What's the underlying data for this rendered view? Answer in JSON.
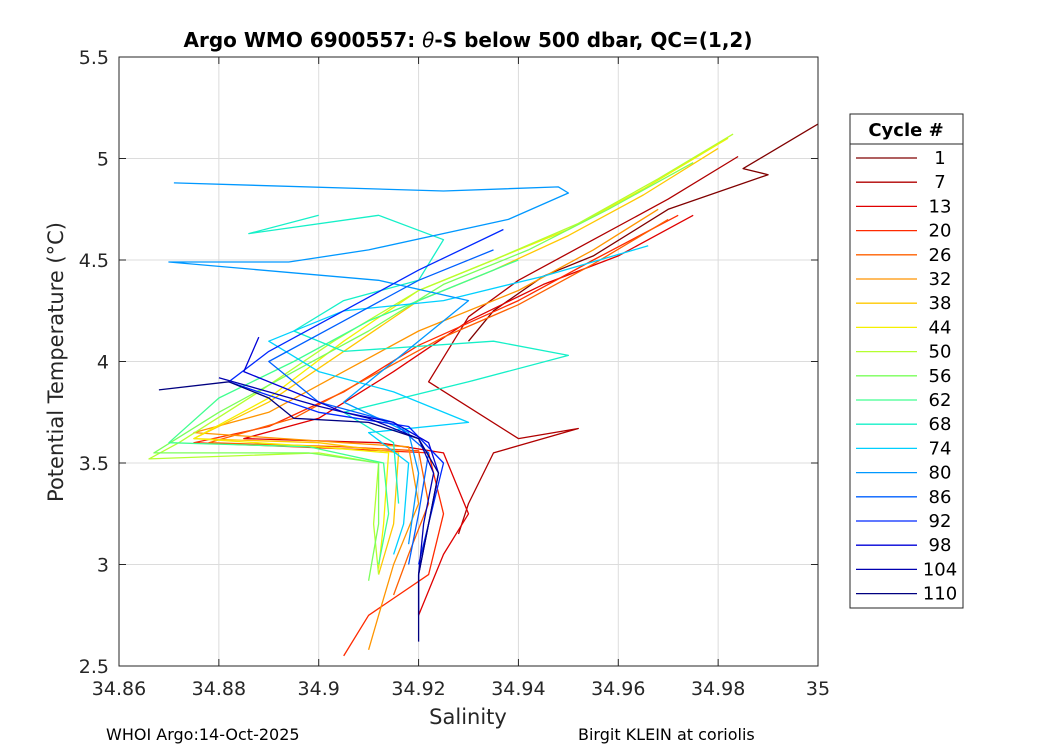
{
  "chart_data": {
    "type": "line",
    "title_prefix": "Argo WMO 6900557: ",
    "title_symbol": "θ",
    "title_suffix": "-S below 500 dbar,  QC=(1,2)",
    "xlabel": "Salinity",
    "ylabel": "Potential Temperature (°C)",
    "xlim": [
      34.86,
      35.0
    ],
    "ylim": [
      2.5,
      5.5
    ],
    "x_ticks": [
      "34.86",
      "34.88",
      "34.9",
      "34.92",
      "34.94",
      "34.96",
      "34.98",
      "35"
    ],
    "y_ticks": [
      "2.5",
      "3",
      "3.5",
      "4",
      "4.5",
      "5",
      "5.5"
    ],
    "grid": true,
    "legend": {
      "title": "Cycle #",
      "placement": "right",
      "entries": [
        {
          "label": "1",
          "color": "#800000"
        },
        {
          "label": "7",
          "color": "#b00000"
        },
        {
          "label": "13",
          "color": "#e00000"
        },
        {
          "label": "20",
          "color": "#ff2a00"
        },
        {
          "label": "26",
          "color": "#ff6000"
        },
        {
          "label": "32",
          "color": "#ff9500"
        },
        {
          "label": "38",
          "color": "#ffc800"
        },
        {
          "label": "44",
          "color": "#f5f000"
        },
        {
          "label": "50",
          "color": "#b5ff30"
        },
        {
          "label": "56",
          "color": "#7aff5a"
        },
        {
          "label": "62",
          "color": "#40ff90"
        },
        {
          "label": "68",
          "color": "#15f0c8"
        },
        {
          "label": "74",
          "color": "#00d0ff"
        },
        {
          "label": "80",
          "color": "#0098ff"
        },
        {
          "label": "86",
          "color": "#0060ff"
        },
        {
          "label": "92",
          "color": "#0028ff"
        },
        {
          "label": "98",
          "color": "#0000d8"
        },
        {
          "label": "104",
          "color": "#0000b0"
        },
        {
          "label": "110",
          "color": "#000080"
        }
      ]
    },
    "series": [
      {
        "name": "1",
        "color": "#800000",
        "points": [
          [
            35.0,
            5.17
          ],
          [
            34.985,
            4.95
          ],
          [
            34.99,
            4.92
          ],
          [
            34.97,
            4.75
          ],
          [
            34.955,
            4.52
          ],
          [
            34.945,
            4.42
          ],
          [
            34.935,
            4.25
          ],
          [
            34.93,
            4.1
          ]
        ]
      },
      {
        "name": "7",
        "color": "#b00000",
        "points": [
          [
            34.984,
            5.01
          ],
          [
            34.97,
            4.8
          ],
          [
            34.955,
            4.6
          ],
          [
            34.94,
            4.4
          ],
          [
            34.93,
            4.22
          ],
          [
            34.922,
            3.9
          ],
          [
            34.94,
            3.62
          ],
          [
            34.952,
            3.67
          ],
          [
            34.935,
            3.55
          ],
          [
            34.93,
            3.3
          ],
          [
            34.928,
            3.15
          ]
        ]
      },
      {
        "name": "13",
        "color": "#e00000",
        "points": [
          [
            34.975,
            4.72
          ],
          [
            34.96,
            4.52
          ],
          [
            34.945,
            4.38
          ],
          [
            34.93,
            4.2
          ],
          [
            34.915,
            3.95
          ],
          [
            34.9,
            3.72
          ],
          [
            34.885,
            3.62
          ],
          [
            34.912,
            3.6
          ],
          [
            34.925,
            3.55
          ],
          [
            34.93,
            3.25
          ],
          [
            34.925,
            3.05
          ],
          [
            34.92,
            2.75
          ]
        ]
      },
      {
        "name": "20",
        "color": "#ff2a00",
        "points": [
          [
            34.972,
            4.72
          ],
          [
            34.955,
            4.5
          ],
          [
            34.94,
            4.3
          ],
          [
            34.92,
            4.08
          ],
          [
            34.905,
            3.85
          ],
          [
            34.89,
            3.68
          ],
          [
            34.875,
            3.6
          ],
          [
            34.905,
            3.57
          ],
          [
            34.922,
            3.55
          ],
          [
            34.925,
            3.25
          ],
          [
            34.922,
            2.95
          ],
          [
            34.91,
            2.75
          ],
          [
            34.905,
            2.55
          ]
        ]
      },
      {
        "name": "26",
        "color": "#ff6000",
        "points": [
          [
            34.97,
            4.7
          ],
          [
            34.955,
            4.48
          ],
          [
            34.94,
            4.28
          ],
          [
            34.925,
            4.12
          ],
          [
            34.91,
            3.92
          ],
          [
            34.895,
            3.72
          ],
          [
            34.878,
            3.6
          ],
          [
            34.905,
            3.58
          ],
          [
            34.92,
            3.56
          ],
          [
            34.922,
            3.3
          ],
          [
            34.918,
            3.05
          ],
          [
            34.915,
            2.85
          ]
        ]
      },
      {
        "name": "32",
        "color": "#ff9500",
        "points": [
          [
            34.968,
            4.75
          ],
          [
            34.955,
            4.55
          ],
          [
            34.94,
            4.35
          ],
          [
            34.92,
            4.15
          ],
          [
            34.905,
            3.95
          ],
          [
            34.89,
            3.75
          ],
          [
            34.875,
            3.65
          ],
          [
            34.905,
            3.6
          ],
          [
            34.918,
            3.58
          ],
          [
            34.92,
            3.3
          ],
          [
            34.915,
            3.0
          ],
          [
            34.912,
            2.75
          ],
          [
            34.91,
            2.58
          ]
        ]
      },
      {
        "name": "38",
        "color": "#ffc800",
        "points": [
          [
            34.98,
            5.05
          ],
          [
            34.965,
            4.82
          ],
          [
            34.95,
            4.62
          ],
          [
            34.935,
            4.45
          ],
          [
            34.92,
            4.3
          ],
          [
            34.905,
            4.05
          ],
          [
            34.89,
            3.8
          ],
          [
            34.875,
            3.62
          ],
          [
            34.9,
            3.6
          ],
          [
            34.916,
            3.55
          ],
          [
            34.915,
            3.2
          ],
          [
            34.912,
            2.95
          ]
        ]
      },
      {
        "name": "44",
        "color": "#f5f000",
        "points": [
          [
            34.982,
            5.1
          ],
          [
            34.965,
            4.85
          ],
          [
            34.95,
            4.65
          ],
          [
            34.935,
            4.5
          ],
          [
            34.92,
            4.35
          ],
          [
            34.905,
            4.1
          ],
          [
            34.89,
            3.82
          ],
          [
            34.875,
            3.62
          ],
          [
            34.9,
            3.58
          ],
          [
            34.914,
            3.55
          ],
          [
            34.913,
            3.2
          ],
          [
            34.912,
            2.98
          ]
        ]
      },
      {
        "name": "50",
        "color": "#b5ff30",
        "points": [
          [
            34.983,
            5.12
          ],
          [
            34.968,
            4.9
          ],
          [
            34.952,
            4.68
          ],
          [
            34.935,
            4.5
          ],
          [
            34.92,
            4.35
          ],
          [
            34.903,
            4.1
          ],
          [
            34.888,
            3.85
          ],
          [
            34.872,
            3.6
          ],
          [
            34.866,
            3.52
          ],
          [
            34.9,
            3.55
          ],
          [
            34.912,
            3.5
          ],
          [
            34.911,
            3.2
          ],
          [
            34.912,
            2.95
          ]
        ]
      },
      {
        "name": "56",
        "color": "#7aff5a",
        "points": [
          [
            34.975,
            4.98
          ],
          [
            34.958,
            4.75
          ],
          [
            34.942,
            4.55
          ],
          [
            34.925,
            4.38
          ],
          [
            34.91,
            4.15
          ],
          [
            34.895,
            3.95
          ],
          [
            34.88,
            3.75
          ],
          [
            34.867,
            3.55
          ],
          [
            34.898,
            3.55
          ],
          [
            34.912,
            3.5
          ],
          [
            34.912,
            3.2
          ],
          [
            34.91,
            2.92
          ]
        ]
      },
      {
        "name": "62",
        "color": "#40ff90",
        "points": [
          [
            34.94,
            4.5
          ],
          [
            34.925,
            4.35
          ],
          [
            34.91,
            4.2
          ],
          [
            34.895,
            4.0
          ],
          [
            34.88,
            3.82
          ],
          [
            34.87,
            3.6
          ],
          [
            34.898,
            3.58
          ],
          [
            34.913,
            3.5
          ],
          [
            34.914,
            3.25
          ],
          [
            34.912,
            3.0
          ]
        ]
      },
      {
        "name": "68",
        "color": "#15f0c8",
        "points": [
          [
            34.9,
            4.72
          ],
          [
            34.886,
            4.63
          ],
          [
            34.912,
            4.72
          ],
          [
            34.925,
            4.6
          ],
          [
            34.92,
            4.4
          ],
          [
            34.905,
            4.3
          ],
          [
            34.895,
            4.15
          ],
          [
            34.905,
            4.05
          ],
          [
            34.935,
            4.1
          ],
          [
            34.95,
            4.03
          ],
          [
            34.93,
            3.9
          ],
          [
            34.905,
            3.75
          ],
          [
            34.915,
            3.6
          ],
          [
            34.916,
            3.3
          ]
        ]
      },
      {
        "name": "74",
        "color": "#00d0ff",
        "points": [
          [
            34.966,
            4.57
          ],
          [
            34.945,
            4.42
          ],
          [
            34.925,
            4.3
          ],
          [
            34.905,
            4.25
          ],
          [
            34.89,
            4.1
          ],
          [
            34.9,
            3.95
          ],
          [
            34.915,
            3.85
          ],
          [
            34.93,
            3.7
          ],
          [
            34.91,
            3.65
          ],
          [
            34.918,
            3.5
          ],
          [
            34.917,
            3.2
          ],
          [
            34.915,
            3.05
          ]
        ]
      },
      {
        "name": "80",
        "color": "#0098ff",
        "points": [
          [
            34.871,
            4.88
          ],
          [
            34.925,
            4.84
          ],
          [
            34.948,
            4.86
          ],
          [
            34.95,
            4.83
          ],
          [
            34.938,
            4.7
          ],
          [
            34.91,
            4.55
          ],
          [
            34.894,
            4.49
          ],
          [
            34.87,
            4.49
          ],
          [
            34.912,
            4.4
          ],
          [
            34.93,
            4.3
          ],
          [
            34.915,
            4.0
          ],
          [
            34.905,
            3.8
          ],
          [
            34.918,
            3.65
          ],
          [
            34.92,
            3.45
          ],
          [
            34.918,
            3.1
          ]
        ]
      },
      {
        "name": "86",
        "color": "#0060ff",
        "points": [
          [
            34.935,
            4.55
          ],
          [
            34.92,
            4.4
          ],
          [
            34.905,
            4.2
          ],
          [
            34.89,
            4.0
          ],
          [
            34.9,
            3.8
          ],
          [
            34.915,
            3.7
          ],
          [
            34.922,
            3.55
          ],
          [
            34.92,
            3.25
          ],
          [
            34.918,
            3.0
          ]
        ]
      },
      {
        "name": "92",
        "color": "#0028ff",
        "points": [
          [
            34.937,
            4.65
          ],
          [
            34.92,
            4.45
          ],
          [
            34.905,
            4.25
          ],
          [
            34.89,
            4.05
          ],
          [
            34.882,
            3.9
          ],
          [
            34.9,
            3.75
          ],
          [
            34.918,
            3.68
          ],
          [
            34.925,
            3.5
          ],
          [
            34.922,
            3.2
          ],
          [
            34.92,
            3.0
          ]
        ]
      },
      {
        "name": "98",
        "color": "#0000d8",
        "points": [
          [
            34.888,
            4.12
          ],
          [
            34.885,
            3.95
          ],
          [
            34.895,
            3.85
          ],
          [
            34.905,
            3.75
          ],
          [
            34.915,
            3.7
          ],
          [
            34.922,
            3.6
          ],
          [
            34.924,
            3.45
          ],
          [
            34.922,
            3.2
          ],
          [
            34.92,
            2.95
          ],
          [
            34.92,
            2.75
          ]
        ]
      },
      {
        "name": "104",
        "color": "#0000b0",
        "points": [
          [
            34.88,
            3.92
          ],
          [
            34.89,
            3.85
          ],
          [
            34.9,
            3.78
          ],
          [
            34.91,
            3.72
          ],
          [
            34.92,
            3.62
          ],
          [
            34.923,
            3.45
          ],
          [
            34.921,
            3.2
          ],
          [
            34.92,
            2.95
          ]
        ]
      },
      {
        "name": "110",
        "color": "#000080",
        "points": [
          [
            34.868,
            3.86
          ],
          [
            34.882,
            3.9
          ],
          [
            34.89,
            3.82
          ],
          [
            34.895,
            3.72
          ],
          [
            34.91,
            3.7
          ],
          [
            34.92,
            3.62
          ],
          [
            34.924,
            3.45
          ],
          [
            34.922,
            3.2
          ],
          [
            34.92,
            2.95
          ],
          [
            34.92,
            2.62
          ]
        ]
      }
    ]
  },
  "footer": {
    "left": "WHOI Argo:14-Oct-2025",
    "right": "Birgit KLEIN at coriolis"
  }
}
